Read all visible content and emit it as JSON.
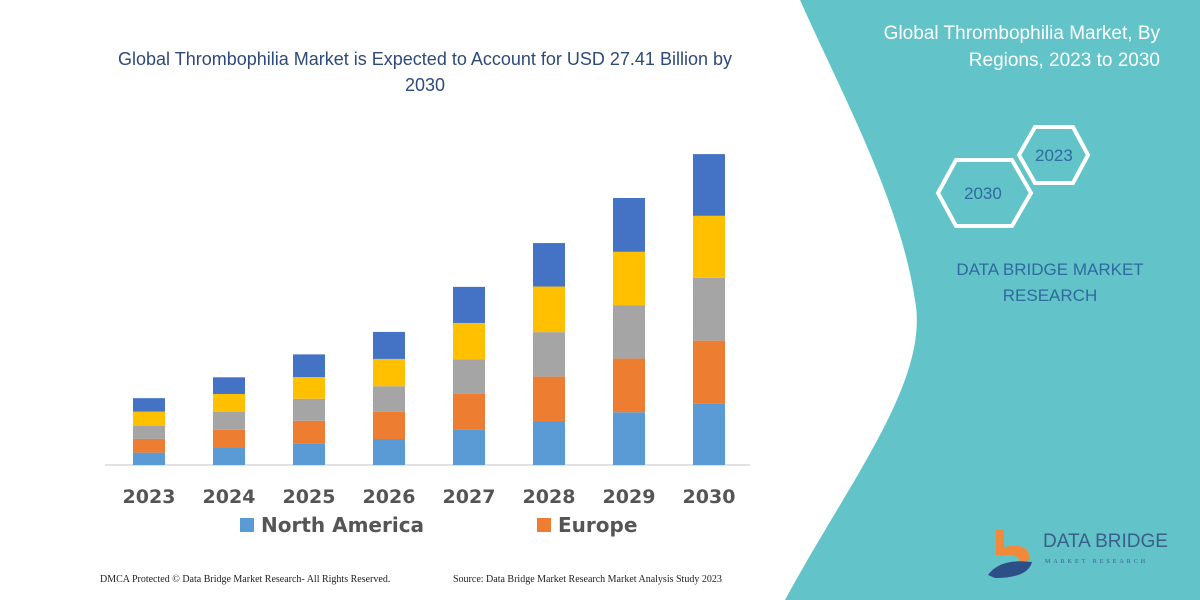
{
  "header": {
    "title": "Global Thrombophilia Market is Expected to Account for USD 27.41 Billion by 2030"
  },
  "side_panel": {
    "title": "Global Thrombophilia Market, By Regions, 2023 to 2030",
    "hex_labels": [
      "2023",
      "2030"
    ],
    "brand_text": "DATA BRIDGE MARKET RESEARCH",
    "logo_text": "DATA BRIDGE",
    "logo_subtext": "MARKET RESEARCH",
    "panel_color": "#62c3c9"
  },
  "footer": {
    "copyright": "DMCA Protected © Data Bridge Market Research-  All Rights Reserved.",
    "source": "Source: Data Bridge Market Research  Market Analysis Study 2023"
  },
  "chart_data": {
    "type": "bar",
    "stacked": true,
    "title": "Global Thrombophilia Market is Expected to Account for USD 27.41 Billion by 2030",
    "xlabel": "",
    "ylabel": "",
    "y_axis_shown": false,
    "grid": false,
    "legend_placement": "bottom",
    "categories": [
      "2023",
      "2024",
      "2025",
      "2026",
      "2027",
      "2028",
      "2029",
      "2030"
    ],
    "series": [
      {
        "name": "North America",
        "color": "#5b9bd5",
        "values": [
          1.09,
          1.5,
          1.91,
          2.29,
          3.09,
          3.88,
          4.65,
          5.44
        ]
      },
      {
        "name": "Europe",
        "color": "#ed7d31",
        "values": [
          1.21,
          1.61,
          1.99,
          2.41,
          3.2,
          3.91,
          4.73,
          5.52
        ]
      },
      {
        "color": "#a5a5a5",
        "values": [
          1.17,
          1.56,
          1.94,
          2.24,
          3.03,
          3.92,
          4.71,
          5.53
        ]
      },
      {
        "color": "#ffc000",
        "values": [
          1.24,
          1.59,
          1.91,
          2.41,
          3.2,
          4.02,
          4.7,
          5.47
        ]
      },
      {
        "color": "#4472c4",
        "values": [
          1.18,
          1.47,
          2.0,
          2.38,
          3.18,
          3.83,
          4.74,
          5.44
        ]
      }
    ],
    "ylim": [
      0,
      27.41
    ]
  }
}
